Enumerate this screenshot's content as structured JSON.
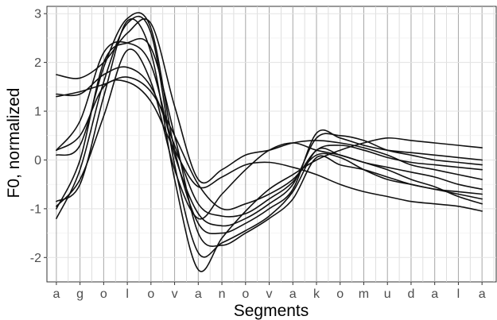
{
  "chart_data": {
    "type": "line",
    "xlabel": "Segments",
    "ylabel": "F0, normalized",
    "categories": [
      "a",
      "g",
      "o",
      "l",
      "o",
      "v",
      "a",
      "n",
      "o",
      "v",
      "a",
      "k",
      "o",
      "m",
      "u",
      "d",
      "a",
      "l",
      "a"
    ],
    "x_range": [
      -0.4,
      18.6
    ],
    "yticks": [
      -2,
      -1,
      0,
      1,
      2,
      3
    ],
    "ylim": [
      -2.5,
      3.15
    ],
    "grid": true,
    "series": [
      {
        "values": [
          1.75,
          1.68,
          2.0,
          2.6,
          2.8,
          1.1,
          -0.4,
          -0.2,
          0.1,
          0.2,
          0.35,
          0.4,
          0.35,
          0.25,
          0.1,
          -0.1,
          -0.2,
          -0.3,
          -0.4
        ]
      },
      {
        "values": [
          1.3,
          1.4,
          1.55,
          1.7,
          1.4,
          0.5,
          -0.5,
          -1.0,
          -0.9,
          -0.7,
          -0.4,
          0.1,
          0.05,
          -0.2,
          -0.4,
          -0.5,
          -0.6,
          -0.65,
          -0.7
        ]
      },
      {
        "values": [
          1.35,
          1.35,
          1.75,
          1.9,
          1.5,
          0.3,
          -0.9,
          -1.15,
          -1.1,
          -0.8,
          -0.45,
          0.2,
          0.3,
          0.2,
          0.05,
          -0.05,
          -0.1,
          -0.15,
          -0.2
        ]
      },
      {
        "values": [
          0.2,
          0.8,
          2.2,
          2.4,
          1.95,
          0.1,
          -1.1,
          -1.35,
          -1.2,
          -0.9,
          -0.5,
          0.45,
          0.5,
          0.4,
          0.2,
          0.1,
          0.0,
          -0.05,
          -0.1
        ]
      },
      {
        "values": [
          0.1,
          0.3,
          1.9,
          2.9,
          2.7,
          0.2,
          -1.3,
          -1.5,
          -1.3,
          -1.0,
          -0.6,
          0.55,
          0.45,
          0.3,
          0.2,
          0.15,
          0.1,
          0.05,
          0.0
        ]
      },
      {
        "values": [
          -1.0,
          0.0,
          2.0,
          2.4,
          2.3,
          0.5,
          -1.5,
          -1.75,
          -1.5,
          -1.2,
          -0.8,
          0.05,
          -0.1,
          -0.2,
          -0.35,
          -0.5,
          -0.6,
          -0.7,
          -0.8
        ]
      },
      {
        "values": [
          -1.2,
          -0.2,
          1.6,
          2.8,
          2.6,
          -0.1,
          -1.9,
          -1.7,
          -1.45,
          -1.15,
          -0.65,
          0.2,
          0.1,
          -0.05,
          -0.2,
          -0.4,
          -0.55,
          -0.75,
          -0.9
        ]
      },
      {
        "values": [
          -0.85,
          -0.5,
          1.3,
          2.85,
          2.2,
          -0.4,
          -2.25,
          -1.6,
          -1.05,
          -0.6,
          -0.3,
          0.0,
          0.2,
          0.35,
          0.45,
          0.4,
          0.35,
          0.3,
          0.25
        ]
      },
      {
        "values": [
          -0.95,
          -0.4,
          0.9,
          2.25,
          1.6,
          -0.2,
          -1.2,
          -0.7,
          -0.2,
          0.2,
          0.35,
          0.2,
          0.1,
          -0.05,
          -0.15,
          -0.25,
          -0.35,
          -0.5,
          -0.6
        ]
      },
      {
        "values": [
          0.2,
          0.5,
          1.5,
          1.6,
          1.2,
          0.2,
          -0.55,
          -0.35,
          -0.1,
          -0.05,
          -0.15,
          -0.3,
          -0.5,
          -0.65,
          -0.75,
          -0.85,
          -0.9,
          -0.95,
          -1.05
        ]
      }
    ]
  }
}
